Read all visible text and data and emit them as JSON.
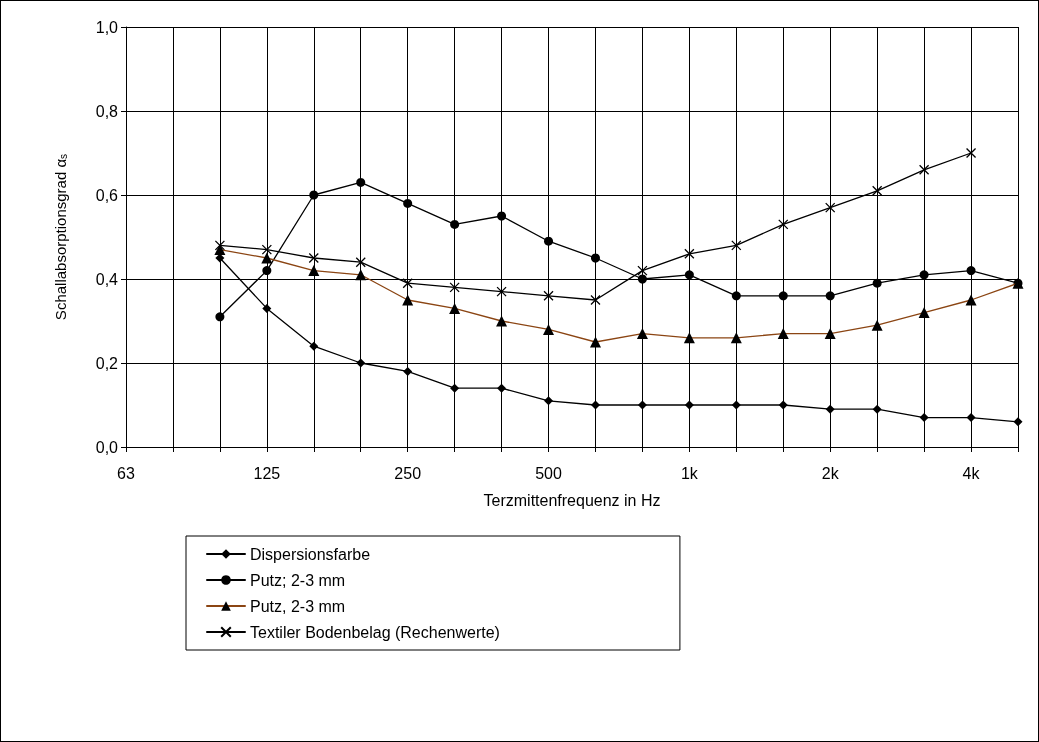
{
  "chart_data": {
    "type": "line",
    "xlabel": "Terzmittenfrequenz in Hz",
    "ylabel": "Schallabsorptionsgrad α$_{s}$",
    "categories": [
      "63",
      null,
      null,
      "125",
      null,
      null,
      "250",
      null,
      null,
      "500",
      null,
      null,
      "1k",
      null,
      null,
      "2k",
      null,
      null,
      "4k",
      null
    ],
    "series": [
      {
        "name": "Dispersionsfarbe",
        "color": "#000000",
        "marker": "diamond",
        "values": [
          null,
          null,
          0.45,
          0.33,
          0.24,
          0.2,
          0.18,
          0.14,
          0.14,
          0.11,
          0.1,
          0.1,
          0.1,
          0.1,
          0.1,
          0.09,
          0.09,
          0.07,
          0.07,
          0.06
        ]
      },
      {
        "name": "Putz; 2-3 mm",
        "color": "#000000",
        "marker": "circle",
        "values": [
          null,
          null,
          0.31,
          0.42,
          0.6,
          0.63,
          0.58,
          0.53,
          0.55,
          0.49,
          0.45,
          0.4,
          0.41,
          0.36,
          0.36,
          0.36,
          0.39,
          0.41,
          0.42,
          0.39
        ]
      },
      {
        "name": "Putz, 2-3 mm",
        "color": "#8b4513",
        "marker": "triangle",
        "values": [
          null,
          null,
          0.47,
          0.45,
          0.42,
          0.41,
          0.35,
          0.33,
          0.3,
          0.28,
          0.25,
          0.27,
          0.26,
          0.26,
          0.27,
          0.27,
          0.29,
          0.32,
          0.35,
          0.39
        ]
      },
      {
        "name": "Textiler Bodenbelag (Rechenwerte)",
        "color": "#000000",
        "marker": "cross",
        "values": [
          null,
          null,
          0.48,
          0.47,
          0.45,
          0.44,
          0.39,
          0.38,
          0.37,
          0.36,
          0.35,
          0.42,
          0.46,
          0.48,
          0.53,
          0.57,
          0.61,
          0.66,
          0.7,
          null
        ]
      }
    ],
    "ylim": [
      0,
      1
    ],
    "yticks": [
      {
        "value": 0,
        "label": "0,0"
      },
      {
        "value": 0.2,
        "label": "0,2"
      },
      {
        "value": 0.4,
        "label": "0,4"
      },
      {
        "value": 0.6,
        "label": "0,6"
      },
      {
        "value": 0.8,
        "label": "0,8"
      },
      {
        "value": 1,
        "label": "1,0"
      }
    ],
    "grid": true,
    "legend": "bottom",
    "line_style": "solid"
  }
}
